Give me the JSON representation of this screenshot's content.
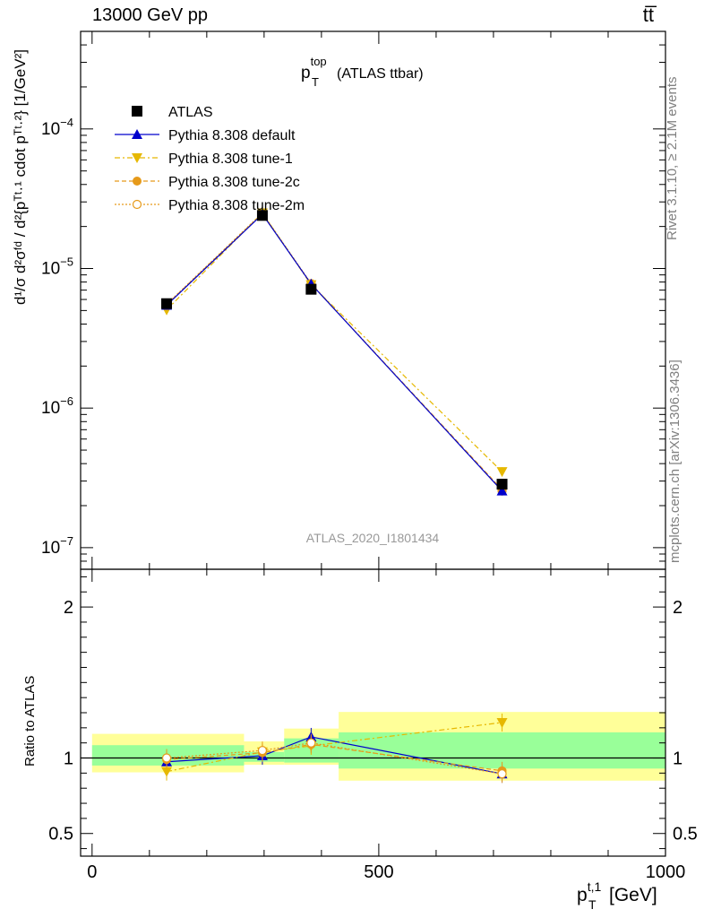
{
  "header": {
    "energy_label": "13000 GeV pp",
    "process_label": "tt̅"
  },
  "side_labels": {
    "rivet": "Rivet 3.1.10, ≥ 2.1M events",
    "mcplots": "mcplots.cern.ch [arXiv:1306.3436]"
  },
  "colors": {
    "atlas": "#000000",
    "default": "#0000cc",
    "tune1": "#e6b800",
    "tune2c": "#e69a1a",
    "tune2m": "#e69a1a",
    "band_inner": "#99ff99",
    "band_outer": "#ffff99"
  },
  "chart_data": [
    {
      "type": "line",
      "title_main": "p",
      "title_sup": "top",
      "title_sub": "T",
      "title_suffix": "(ATLAS ttbar)",
      "watermark": "ATLAS_2020_I1801434",
      "ylabel": "d¹/σ d²σᶠᵈ / d²{pᵀᵗ·¹ cdot pᵀᵗ·²} [1/GeV²]",
      "y_scale": "log",
      "ylim": [
        7e-08,
        0.0005
      ],
      "xlim": [
        -20,
        1000
      ],
      "y_ticks": [
        {
          "value": 0.0001,
          "base": "10",
          "exp": "−4"
        },
        {
          "value": 1e-05,
          "base": "10",
          "exp": "−5"
        },
        {
          "value": 1e-06,
          "base": "10",
          "exp": "−6"
        },
        {
          "value": 1e-07,
          "base": "10",
          "exp": "−7"
        }
      ],
      "x": [
        130,
        297,
        382,
        715
      ],
      "x_bins": [
        [
          0,
          265
        ],
        [
          265,
          335
        ],
        [
          335,
          430
        ],
        [
          430,
          1000
        ]
      ],
      "series": [
        {
          "name": "ATLAS",
          "values": [
            5.6e-06,
            2.4e-05,
            7.1e-06,
            2.85e-07
          ]
        },
        {
          "name": "Pythia 8.308 default",
          "values": [
            5.45e-06,
            2.45e-05,
            7.75e-06,
            2.55e-07
          ]
        },
        {
          "name": "Pythia 8.308 tune-1",
          "values": [
            5.05e-06,
            2.5e-05,
            7.65e-06,
            3.5e-07
          ]
        },
        {
          "name": "Pythia 8.308 tune-2c",
          "values": [
            5.5e-06,
            2.48e-05,
            7.75e-06,
            2.6e-07
          ]
        },
        {
          "name": "Pythia 8.308 tune-2m",
          "values": [
            5.55e-06,
            2.5e-05,
            7.8e-06,
            2.55e-07
          ]
        }
      ],
      "legend_position": "top-left"
    },
    {
      "type": "line",
      "ylabel": "Ratio to ATLAS",
      "xlabel_main": "p",
      "xlabel_sup": "t,1",
      "xlabel_sub": "T",
      "xlabel_unit": "[GeV]",
      "ylim": [
        0.35,
        2.25
      ],
      "xlim": [
        -20,
        1000
      ],
      "y_tick_labels": [
        "2",
        "1",
        "0.5"
      ],
      "y_tick_values": [
        2,
        1,
        0.5
      ],
      "x_tick_labels": [
        "0",
        "500",
        "1000"
      ],
      "x_tick_values": [
        0,
        500,
        1000
      ],
      "band_inner": [
        [
          0.95,
          1.085
        ],
        [
          0.975,
          1.04
        ],
        [
          0.97,
          1.13
        ],
        [
          0.93,
          1.17
        ]
      ],
      "band_outer": [
        [
          0.905,
          1.16
        ],
        [
          0.955,
          1.11
        ],
        [
          0.955,
          1.195
        ],
        [
          0.85,
          1.305
        ]
      ],
      "x": [
        130,
        297,
        382,
        715
      ],
      "series": [
        {
          "name": "Pythia 8.308 default",
          "values": [
            0.975,
            1.015,
            1.14,
            0.895
          ]
        },
        {
          "name": "Pythia 8.308 tune-1",
          "values": [
            0.91,
            1.04,
            1.08,
            1.235
          ]
        },
        {
          "name": "Pythia 8.308 tune-2c",
          "values": [
            0.99,
            1.035,
            1.09,
            0.915
          ]
        },
        {
          "name": "Pythia 8.308 tune-2m",
          "values": [
            1.0,
            1.05,
            1.1,
            0.895
          ]
        }
      ]
    }
  ]
}
